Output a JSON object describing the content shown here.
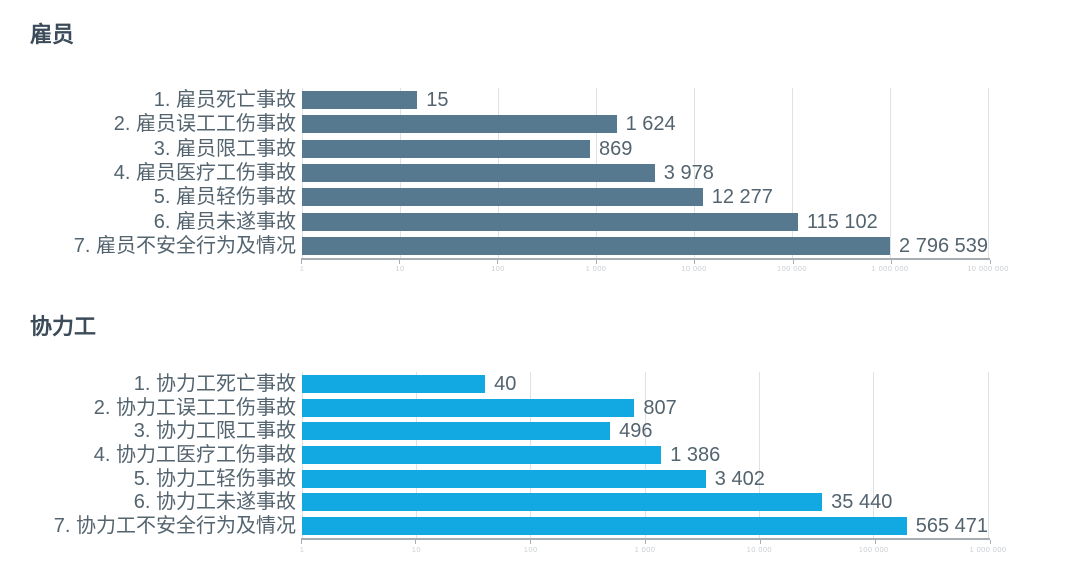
{
  "page": {
    "background_color": "#ffffff"
  },
  "theme": {
    "title_color": "#3c4b5a",
    "category_label_color": "#54646f",
    "value_label_color": "#54646f",
    "axis_color": "#a6adb3",
    "gridline_color": "#dee2e5",
    "tick_label_color": "#c9cfd4"
  },
  "chart_data": [
    {
      "type": "bar",
      "orientation": "horizontal",
      "title": "雇员",
      "bar_color": "#57798f",
      "grid": true,
      "legend": false,
      "xscale": "log",
      "xlim": [
        1,
        10000000
      ],
      "decades": 7,
      "x_tick_labels": [
        "1",
        "10",
        "100",
        "1 000",
        "10 000",
        "100 000",
        "1 000 000",
        "10 000 000"
      ],
      "categories": [
        "1. 雇员死亡事故",
        "2. 雇员误工工伤事故",
        "3. 雇员限工事故",
        "4. 雇员医疗工伤事故",
        "5. 雇员轻伤事故",
        "6. 雇员未遂事故",
        "7. 雇员不安全行为及情况"
      ],
      "values": [
        15,
        1624,
        869,
        3978,
        12277,
        115102,
        2796539
      ],
      "value_labels": [
        "15",
        "1 624",
        "869",
        "3 978",
        "12 277",
        "115 102",
        "2 796 539"
      ]
    },
    {
      "type": "bar",
      "orientation": "horizontal",
      "title": "协力工",
      "bar_color": "#12a8e2",
      "grid": true,
      "legend": false,
      "xscale": "log",
      "xlim": [
        1,
        1000000
      ],
      "decades": 6,
      "x_tick_labels": [
        "1",
        "10",
        "100",
        "1 000",
        "10 000",
        "100 000",
        "1 000 000"
      ],
      "categories": [
        "1. 协力工死亡事故",
        "2. 协力工误工工伤事故",
        "3. 协力工限工事故",
        "4. 协力工医疗工伤事故",
        "5. 协力工轻伤事故",
        "6. 协力工未遂事故",
        "7. 协力工不安全行为及情况"
      ],
      "values": [
        40,
        807,
        496,
        1386,
        3402,
        35440,
        565471
      ],
      "value_labels": [
        "40",
        "807",
        "496",
        "1 386",
        "3 402",
        "35 440",
        "565 471"
      ]
    }
  ]
}
